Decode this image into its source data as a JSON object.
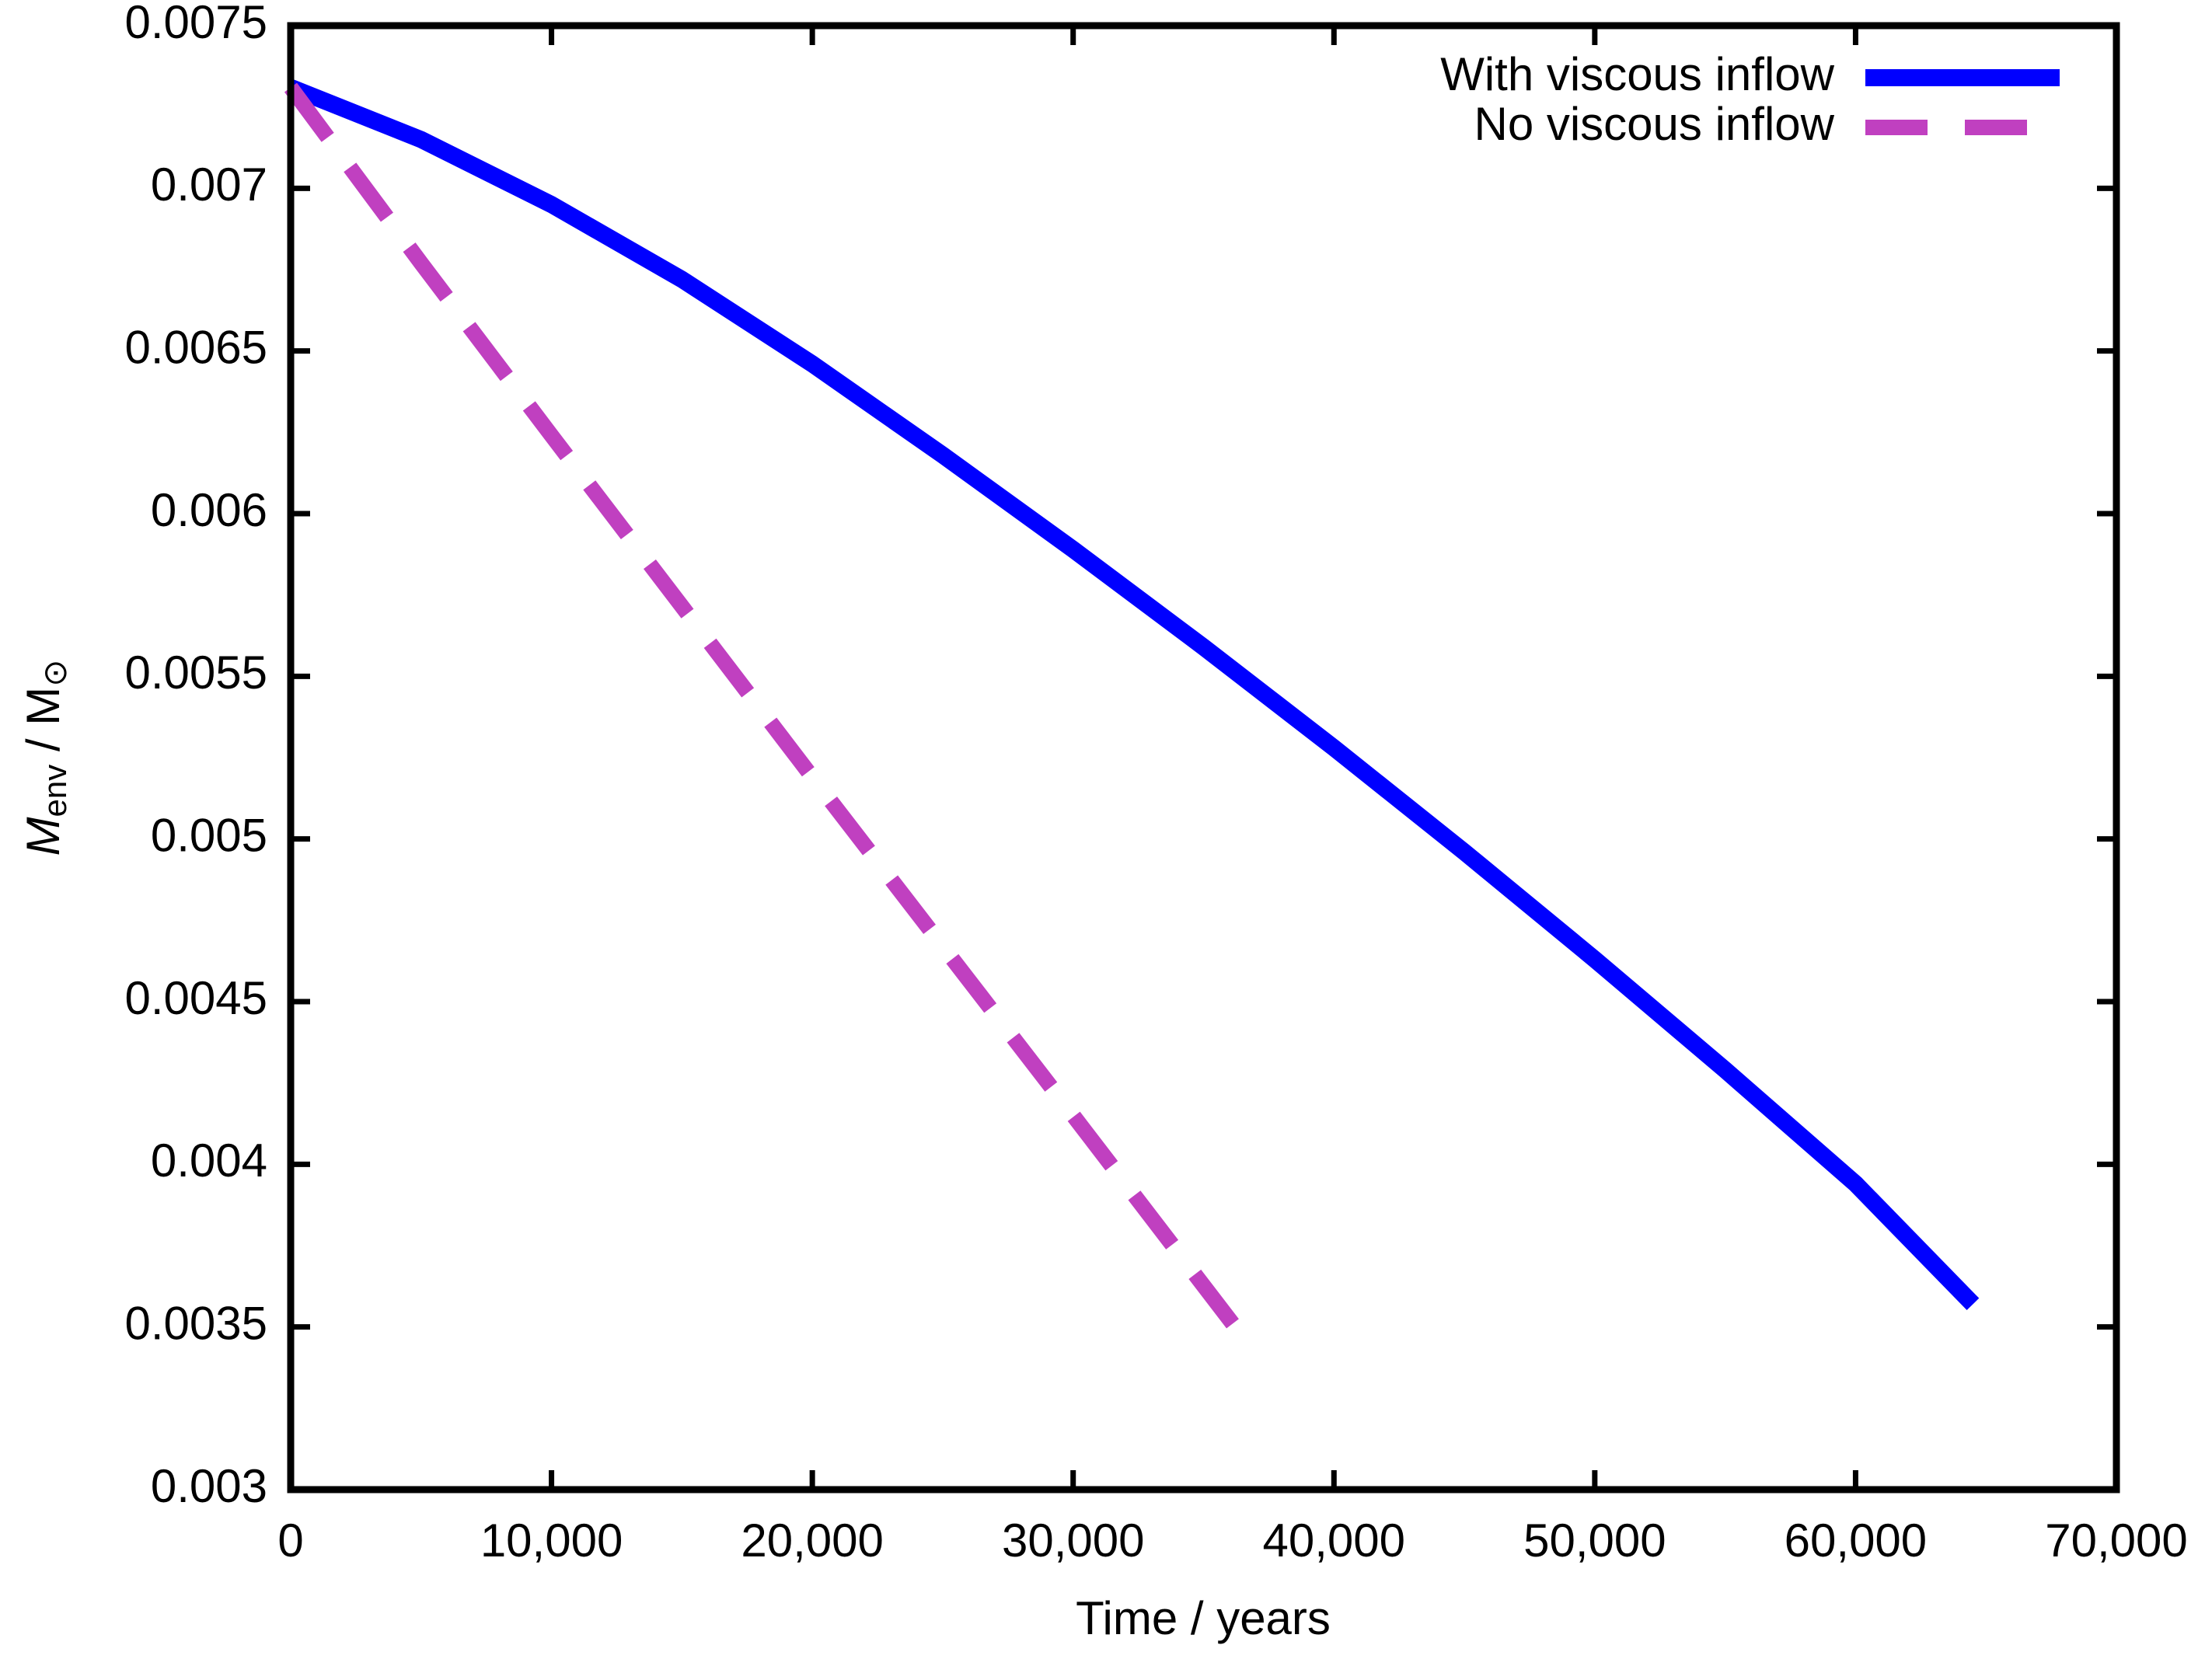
{
  "chart_data": {
    "type": "line",
    "x_label": "Time / years",
    "y_label": {
      "symbol": "M",
      "symbol_sub": "env",
      "rest": " / M",
      "rest_sub": "⊙"
    },
    "xlim": [
      0,
      70000
    ],
    "xticks": [
      0,
      {
        "value": 10000,
        "label": "10,000"
      },
      {
        "value": 20000,
        "label": "20,000"
      },
      {
        "value": 30000,
        "label": "30,000"
      },
      {
        "value": 40000,
        "label": "40,000"
      },
      {
        "value": 50000,
        "label": "50,000"
      },
      {
        "value": 60000,
        "label": "60,000"
      },
      {
        "value": 70000,
        "label": "70,000"
      }
    ],
    "ylim": [
      0.003,
      0.0075
    ],
    "yticks": [
      0.003,
      0.0035,
      0.004,
      0.0045,
      0.005,
      0.0055,
      0.006,
      0.0065,
      0.007,
      0.0075
    ],
    "legend": "upper right",
    "series": [
      {
        "name": "With viscous inflow",
        "color": "#0000ff",
        "dash": false,
        "x": [
          0,
          5000,
          10000,
          15000,
          20000,
          25000,
          30000,
          35000,
          40000,
          45000,
          50000,
          55000,
          60000,
          64500
        ],
        "values": [
          0.00731,
          0.00715,
          0.00695,
          0.00672,
          0.00646,
          0.00618,
          0.00589,
          0.00559,
          0.00528,
          0.00496,
          0.00463,
          0.00429,
          0.00394,
          0.00357
        ]
      },
      {
        "name": "No viscous inflow",
        "color": "#c040c0",
        "dash": true,
        "x": [
          0,
          5000,
          10000,
          20000,
          30000,
          36500
        ],
        "values": [
          0.00731,
          0.00677,
          0.00624,
          0.00519,
          0.00415,
          0.00347
        ]
      }
    ]
  }
}
